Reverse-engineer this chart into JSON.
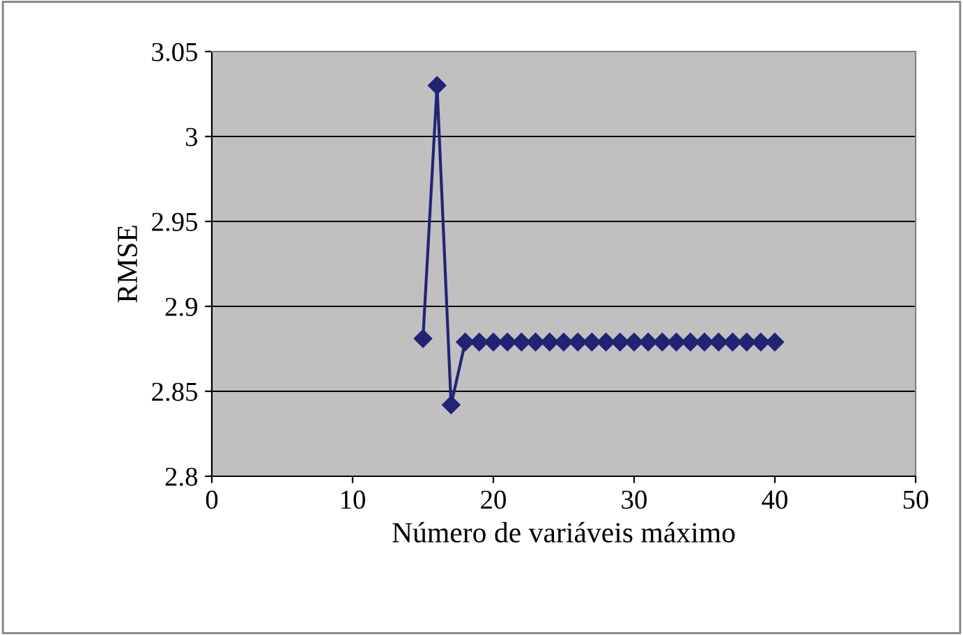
{
  "chart_data": {
    "type": "line",
    "xlabel": "Número de variáveis máximo",
    "ylabel": "RMSE",
    "x": [
      15,
      16,
      17,
      18,
      19,
      20,
      21,
      22,
      23,
      24,
      25,
      26,
      27,
      28,
      29,
      30,
      31,
      32,
      33,
      34,
      35,
      36,
      37,
      38,
      39,
      40
    ],
    "series": [
      {
        "color": "#232375",
        "values": [
          2.881,
          3.03,
          2.842,
          2.879,
          2.879,
          2.879,
          2.879,
          2.879,
          2.879,
          2.879,
          2.879,
          2.879,
          2.879,
          2.879,
          2.879,
          2.879,
          2.879,
          2.879,
          2.879,
          2.879,
          2.879,
          2.879,
          2.879,
          2.879,
          2.879,
          2.879
        ]
      }
    ],
    "xlim": [
      0,
      50
    ],
    "xticks": [
      0,
      10,
      20,
      30,
      40,
      50
    ],
    "ylim": [
      2.8,
      3.05
    ],
    "yticks": [
      2.8,
      2.85,
      2.9,
      2.95,
      3,
      3.05
    ],
    "grid": "y",
    "marker": "diamond",
    "line_style": "solid",
    "legend": false
  }
}
